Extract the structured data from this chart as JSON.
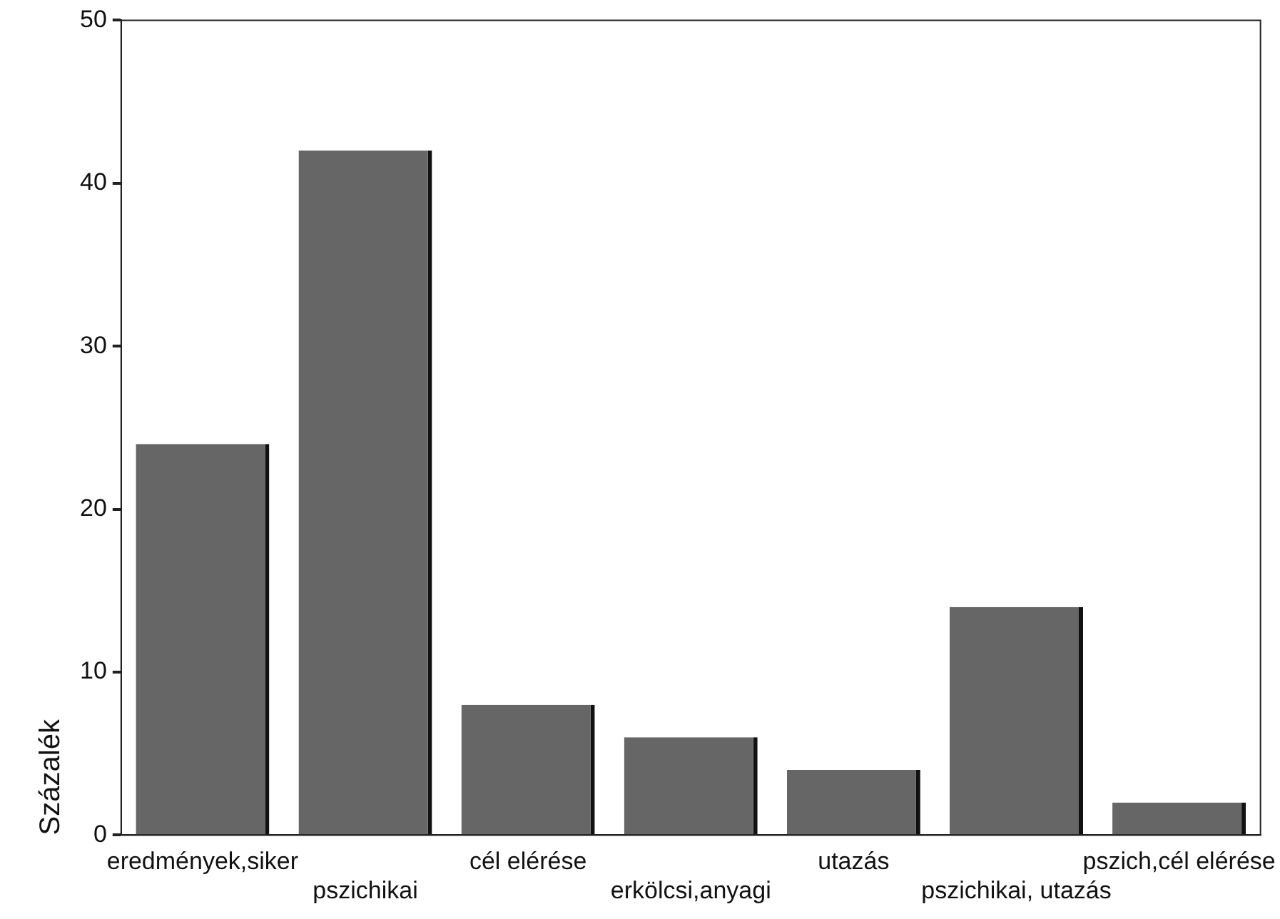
{
  "chart_data": {
    "type": "bar",
    "ylabel": "Százalék",
    "categories": [
      "eredmények,siker",
      "pszichikai",
      "cél elérése",
      "erkölcsi,anyagi",
      "utazás",
      "pszichikai, utazás",
      "pszich,cél elérése"
    ],
    "values": [
      24,
      42,
      8,
      6,
      4,
      14,
      2
    ],
    "color": "#666666",
    "ylim": [
      0,
      50
    ],
    "yticks": [
      0,
      10,
      20,
      30,
      40,
      50
    ],
    "grid": false,
    "legend": false
  }
}
